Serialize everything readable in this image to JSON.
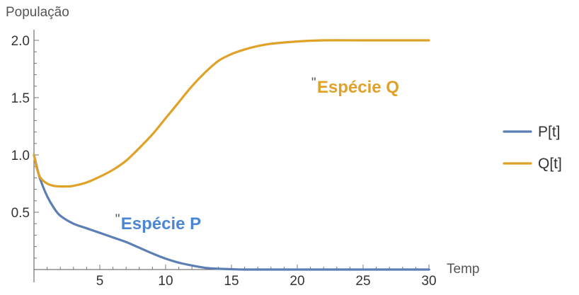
{
  "chart_data": {
    "type": "line",
    "ylabel": "População",
    "xlabel": "Temp",
    "xlim": [
      0,
      30
    ],
    "ylim": [
      0,
      2.0
    ],
    "x_ticks": [
      5,
      10,
      15,
      20,
      25,
      30
    ],
    "x_tick_labels": [
      "5",
      "10",
      "15",
      "20",
      "25",
      "30"
    ],
    "y_ticks": [
      0.5,
      1.0,
      1.5,
      2.0
    ],
    "y_tick_labels": [
      "0.5",
      "1.0",
      "1.5",
      "2.0"
    ],
    "grid": false,
    "legend_position": "right",
    "series": [
      {
        "name": "P[t]",
        "color": "#5b7fb5",
        "x": [
          0,
          0.25,
          0.5,
          1,
          1.5,
          2,
          3,
          4,
          5,
          6,
          7,
          8,
          9,
          10,
          11,
          12,
          13,
          14,
          15,
          16,
          18,
          20,
          25,
          30
        ],
        "y": [
          1.0,
          0.88,
          0.78,
          0.64,
          0.54,
          0.47,
          0.4,
          0.36,
          0.32,
          0.28,
          0.24,
          0.19,
          0.14,
          0.095,
          0.06,
          0.035,
          0.015,
          0.007,
          0.003,
          0.0,
          0.0,
          0.0,
          0.0,
          0.0
        ]
      },
      {
        "name": "Q[t]",
        "color": "#e0a127",
        "x": [
          0,
          0.25,
          0.5,
          1,
          1.5,
          2,
          2.5,
          3,
          4,
          5,
          6,
          7,
          8,
          9,
          10,
          11,
          12,
          13,
          14,
          15,
          16,
          17,
          18,
          20,
          22,
          25,
          30
        ],
        "y": [
          1.0,
          0.87,
          0.8,
          0.75,
          0.73,
          0.725,
          0.725,
          0.73,
          0.76,
          0.81,
          0.87,
          0.95,
          1.06,
          1.18,
          1.32,
          1.46,
          1.6,
          1.72,
          1.82,
          1.88,
          1.92,
          1.95,
          1.97,
          1.99,
          2.0,
          2.0,
          2.0
        ]
      }
    ],
    "annotations": [
      {
        "quote": "\"",
        "text": "Espécie P",
        "color": "#4a86d4",
        "x": 6.6,
        "y": 0.39
      },
      {
        "quote": "\"",
        "text": "Espécie Q",
        "color": "#e0a127",
        "x": 21.5,
        "y": 1.58
      }
    ]
  }
}
